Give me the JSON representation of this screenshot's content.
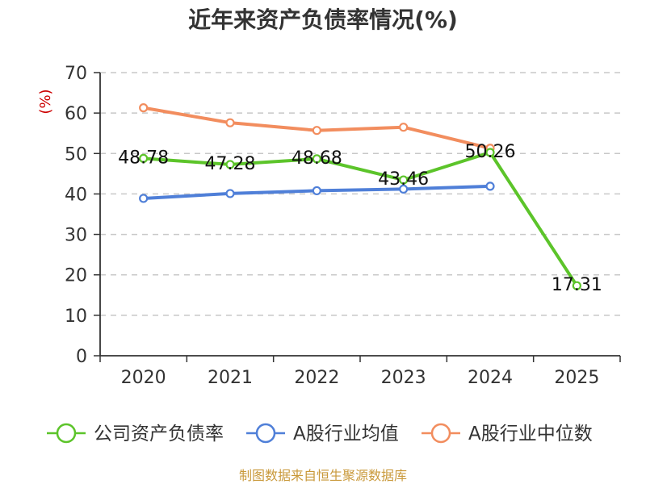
{
  "chart_data": {
    "type": "line",
    "title": "近年来资产负债率情况(%)",
    "ylabel": "(%)",
    "xlabel": "",
    "categories": [
      "2020",
      "2021",
      "2022",
      "2023",
      "2024",
      "2025"
    ],
    "ylim": [
      0,
      70
    ],
    "yticks": [
      0,
      10,
      20,
      30,
      40,
      50,
      60,
      70
    ],
    "grid": true,
    "legend_position": "bottom",
    "series": [
      {
        "name": "公司资产负债率",
        "color": "#5cc42a",
        "values": [
          48.78,
          47.28,
          48.68,
          43.46,
          50.26,
          17.31
        ],
        "labels": [
          "48.78",
          "47.28",
          "48.68",
          "43.46",
          "50.26",
          "17.31"
        ],
        "show_labels": true
      },
      {
        "name": "A股行业均值",
        "color": "#4f7fd8",
        "values": [
          38.9,
          40.1,
          40.8,
          41.2,
          41.9,
          null
        ],
        "show_labels": false
      },
      {
        "name": "A股行业中位数",
        "color": "#f28d5e",
        "values": [
          61.3,
          57.6,
          55.7,
          56.5,
          51.3,
          null
        ],
        "show_labels": false
      }
    ],
    "source": "制图数据来自恒生聚源数据库"
  }
}
